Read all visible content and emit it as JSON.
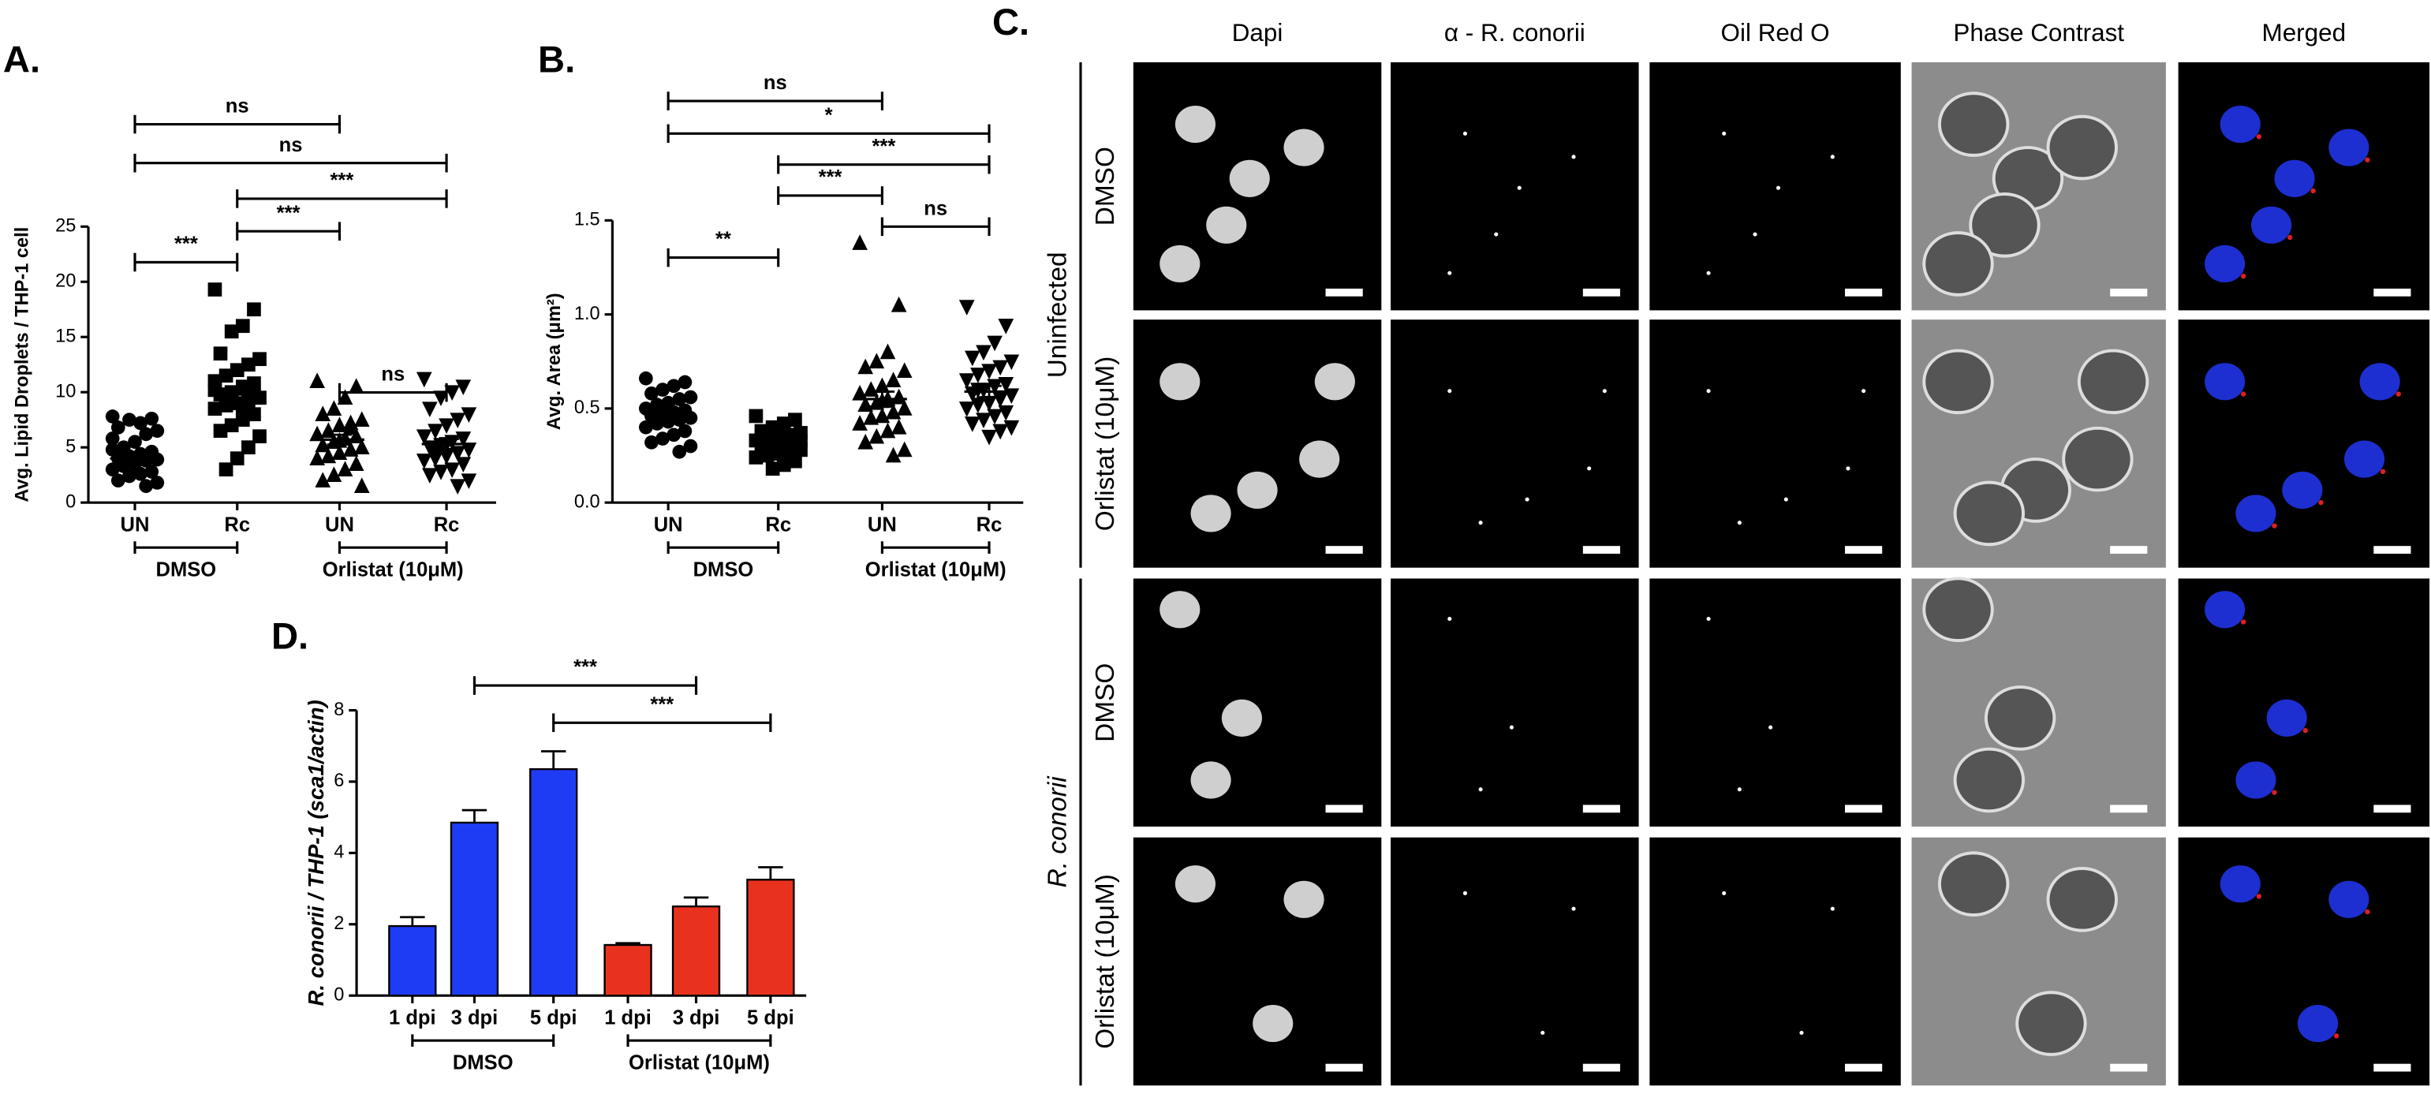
{
  "chart_data": [
    {
      "type": "dot",
      "panel_label": "A.",
      "ylabel": "Avg. Lipid Droplets / THP-1 cell",
      "categories": [
        "UN",
        "Rc",
        "UN",
        "Rc"
      ],
      "group_labels": [
        "DMSO",
        "Orlistat (10μM)"
      ],
      "markers": [
        "circle",
        "square",
        "triangle",
        "triangle-down"
      ],
      "color": "#000000",
      "ylim": [
        0,
        25
      ],
      "yticks": [
        0,
        5,
        10,
        15,
        20,
        25
      ],
      "points": [
        [
          7.8,
          7.6,
          7.2,
          7.5,
          6.8,
          6.5,
          6.2,
          5.5,
          5.0,
          4.8,
          4.6,
          4.4,
          4.2,
          4.0,
          3.9,
          3.8,
          3.5,
          3.3,
          3.0,
          2.8,
          2.6,
          2.4,
          2.0,
          1.8,
          1.5,
          3.6,
          4.5,
          5.8
        ],
        [
          19.3,
          17.5,
          16.0,
          15.5,
          13.5,
          13.0,
          12.5,
          12.0,
          11.5,
          11.0,
          10.8,
          10.5,
          10.0,
          9.8,
          9.5,
          9.2,
          9.0,
          8.8,
          8.5,
          8.0,
          7.5,
          7.0,
          6.5,
          6.0,
          5.0,
          4.0,
          3.0,
          10.2,
          9.6,
          8.3
        ],
        [
          11.0,
          10.5,
          9.5,
          8.5,
          8.0,
          7.5,
          7.2,
          7.0,
          6.5,
          6.2,
          6.0,
          5.8,
          5.5,
          5.2,
          5.0,
          4.8,
          4.5,
          4.2,
          4.0,
          3.5,
          3.0,
          2.5,
          2.0,
          1.5,
          6.8,
          5.6
        ],
        [
          11.2,
          10.5,
          10.0,
          9.5,
          8.5,
          8.0,
          7.5,
          7.0,
          6.5,
          6.0,
          5.8,
          5.5,
          5.2,
          5.0,
          4.8,
          4.5,
          4.2,
          4.0,
          3.8,
          3.5,
          3.0,
          2.8,
          2.5,
          2.0,
          1.5,
          5.3,
          4.6
        ]
      ],
      "means": [
        4.0,
        9.8,
        5.7,
        5.3
      ],
      "sem": [
        0.35,
        0.65,
        0.45,
        0.45
      ],
      "comparisons": [
        {
          "from": 0,
          "to": 2,
          "label": "ns"
        },
        {
          "from": 0,
          "to": 3,
          "label": "ns"
        },
        {
          "from": 1,
          "to": 3,
          "label": "***"
        },
        {
          "from": 1,
          "to": 2,
          "label": "***"
        },
        {
          "from": 0,
          "to": 1,
          "label": "***"
        },
        {
          "from": 2,
          "to": 3,
          "label": "ns"
        }
      ]
    },
    {
      "type": "dot",
      "panel_label": "B.",
      "ylabel": "Avg. Area (μm²)",
      "categories": [
        "UN",
        "Rc",
        "UN",
        "Rc"
      ],
      "group_labels": [
        "DMSO",
        "Orlistat (10μM)"
      ],
      "markers": [
        "circle",
        "square",
        "triangle",
        "triangle-down"
      ],
      "color": "#000000",
      "ylim": [
        0,
        1.5
      ],
      "yticks": [
        {
          "value": 0,
          "label": "0.0"
        },
        {
          "value": 0.5,
          "label": "0.5"
        },
        {
          "value": 1,
          "label": "1.0"
        },
        {
          "value": 1.5,
          "label": "1.5"
        }
      ],
      "points": [
        [
          0.66,
          0.64,
          0.62,
          0.6,
          0.58,
          0.56,
          0.55,
          0.53,
          0.52,
          0.5,
          0.49,
          0.48,
          0.47,
          0.46,
          0.45,
          0.44,
          0.43,
          0.42,
          0.4,
          0.38,
          0.36,
          0.34,
          0.32,
          0.3,
          0.27,
          0.5,
          0.45
        ],
        [
          0.46,
          0.44,
          0.42,
          0.4,
          0.38,
          0.37,
          0.36,
          0.35,
          0.34,
          0.33,
          0.32,
          0.31,
          0.3,
          0.29,
          0.28,
          0.27,
          0.26,
          0.25,
          0.24,
          0.22,
          0.2,
          0.18,
          0.35,
          0.33,
          0.3,
          0.28
        ],
        [
          1.38,
          1.05,
          0.8,
          0.75,
          0.72,
          0.7,
          0.65,
          0.62,
          0.6,
          0.58,
          0.56,
          0.55,
          0.53,
          0.52,
          0.5,
          0.48,
          0.46,
          0.45,
          0.42,
          0.4,
          0.38,
          0.35,
          0.32,
          0.28,
          0.25,
          0.54
        ],
        [
          1.04,
          0.94,
          0.85,
          0.8,
          0.77,
          0.75,
          0.72,
          0.7,
          0.68,
          0.65,
          0.63,
          0.62,
          0.6,
          0.58,
          0.57,
          0.55,
          0.53,
          0.52,
          0.5,
          0.48,
          0.46,
          0.44,
          0.42,
          0.4,
          0.38,
          0.35,
          0.6
        ]
      ],
      "means": [
        0.47,
        0.33,
        0.55,
        0.59
      ],
      "sem": [
        0.02,
        0.015,
        0.04,
        0.03
      ],
      "comparisons": [
        {
          "from": 0,
          "to": 2,
          "label": "ns"
        },
        {
          "from": 0,
          "to": 3,
          "label": "*"
        },
        {
          "from": 1,
          "to": 3,
          "label": "***"
        },
        {
          "from": 1,
          "to": 2,
          "label": "***"
        },
        {
          "from": 2,
          "to": 3,
          "label": "ns"
        },
        {
          "from": 0,
          "to": 1,
          "label": "**"
        }
      ]
    },
    {
      "type": "bar",
      "panel_label": "D.",
      "ylabel": "R. conorii / THP-1 (sca1/actin)",
      "categories": [
        "1 dpi",
        "3 dpi",
        "5 dpi",
        "1 dpi",
        "3 dpi",
        "5 dpi"
      ],
      "group_labels": [
        "DMSO",
        "Orlistat (10μM)"
      ],
      "values": [
        1.95,
        4.85,
        6.35,
        1.42,
        2.5,
        3.25
      ],
      "errors": [
        0.25,
        0.35,
        0.5,
        0.05,
        0.25,
        0.35
      ],
      "colors": [
        "#1f3cf5",
        "#1f3cf5",
        "#1f3cf5",
        "#e8321e",
        "#e8321e",
        "#e8321e"
      ],
      "ylim": [
        0,
        8
      ],
      "yticks": [
        0,
        2,
        4,
        6,
        8
      ],
      "comparisons": [
        {
          "from": 1,
          "to": 4,
          "label": "***"
        },
        {
          "from": 2,
          "to": 5,
          "label": "***"
        }
      ]
    }
  ],
  "panel_c": {
    "label": "C.",
    "columns": [
      "Dapi",
      "α - R. conorii",
      "Oil Red O",
      "Phase Contrast",
      "Merged"
    ],
    "row_groups": [
      {
        "name": "Uninfected",
        "rows": [
          "DMSO",
          "Orlistat (10μM)"
        ]
      },
      {
        "name": "R. conorii",
        "rows": [
          "DMSO",
          "Orlistat (10μM)"
        ]
      }
    ]
  }
}
